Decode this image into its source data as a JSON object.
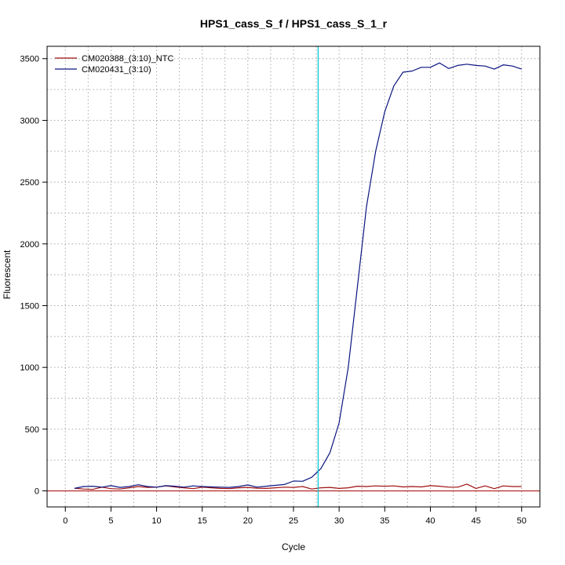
{
  "chart_data": {
    "type": "line",
    "title": "HPS1_cass_S_f / HPS1_cass_S_1_r",
    "xlabel": "Cycle",
    "ylabel": "Fluorescent",
    "xlim": [
      -2,
      52
    ],
    "ylim": [
      -130,
      3600
    ],
    "x_ticks": [
      0,
      5,
      10,
      15,
      20,
      25,
      30,
      35,
      40,
      45,
      50
    ],
    "y_ticks": [
      0,
      500,
      1000,
      1500,
      2000,
      2500,
      3000,
      3500
    ],
    "x_grid": [
      2.5,
      7.5,
      12.5,
      17.5,
      22.5,
      27.5,
      32.5,
      37.5,
      42.5,
      47.5
    ],
    "y_grid": [
      250,
      750,
      1250,
      1750,
      2250,
      2750,
      3250
    ],
    "threshold_x": 27.7,
    "threshold_color": "#00c5d6",
    "baseline_y": 0,
    "baseline_color": "#b01818",
    "grid": true,
    "legend_position": "top-left",
    "x": [
      1,
      2,
      3,
      4,
      5,
      6,
      7,
      8,
      9,
      10,
      11,
      12,
      13,
      14,
      15,
      16,
      17,
      18,
      19,
      20,
      21,
      22,
      23,
      24,
      25,
      26,
      27,
      28,
      29,
      30,
      31,
      32,
      33,
      34,
      35,
      36,
      37,
      38,
      39,
      40,
      41,
      42,
      43,
      44,
      45,
      46,
      47,
      48,
      49,
      50
    ],
    "series": [
      {
        "name": "CM020388_(3:10)_NTC",
        "color": "#a01010",
        "values": [
          22,
          15,
          12,
          30,
          18,
          15,
          25,
          35,
          28,
          30,
          40,
          32,
          25,
          18,
          30,
          25,
          20,
          18,
          25,
          28,
          22,
          20,
          25,
          30,
          28,
          35,
          15,
          25,
          28,
          20,
          25,
          38,
          35,
          40,
          38,
          40,
          32,
          35,
          32,
          42,
          38,
          30,
          30,
          55,
          20,
          40,
          18,
          40,
          35,
          35
        ]
      },
      {
        "name": "CM020431_(3:10)",
        "color": "#0a1580",
        "values": [
          20,
          35,
          38,
          30,
          42,
          28,
          35,
          50,
          35,
          30,
          42,
          38,
          30,
          40,
          35,
          32,
          30,
          28,
          35,
          48,
          30,
          38,
          45,
          52,
          80,
          78,
          110,
          180,
          310,
          550,
          1000,
          1650,
          2300,
          2750,
          3070,
          3280,
          3390,
          3400,
          3430,
          3430,
          3465,
          3420,
          3445,
          3455,
          3445,
          3440,
          3415,
          3450,
          3440,
          3415
        ]
      }
    ]
  }
}
